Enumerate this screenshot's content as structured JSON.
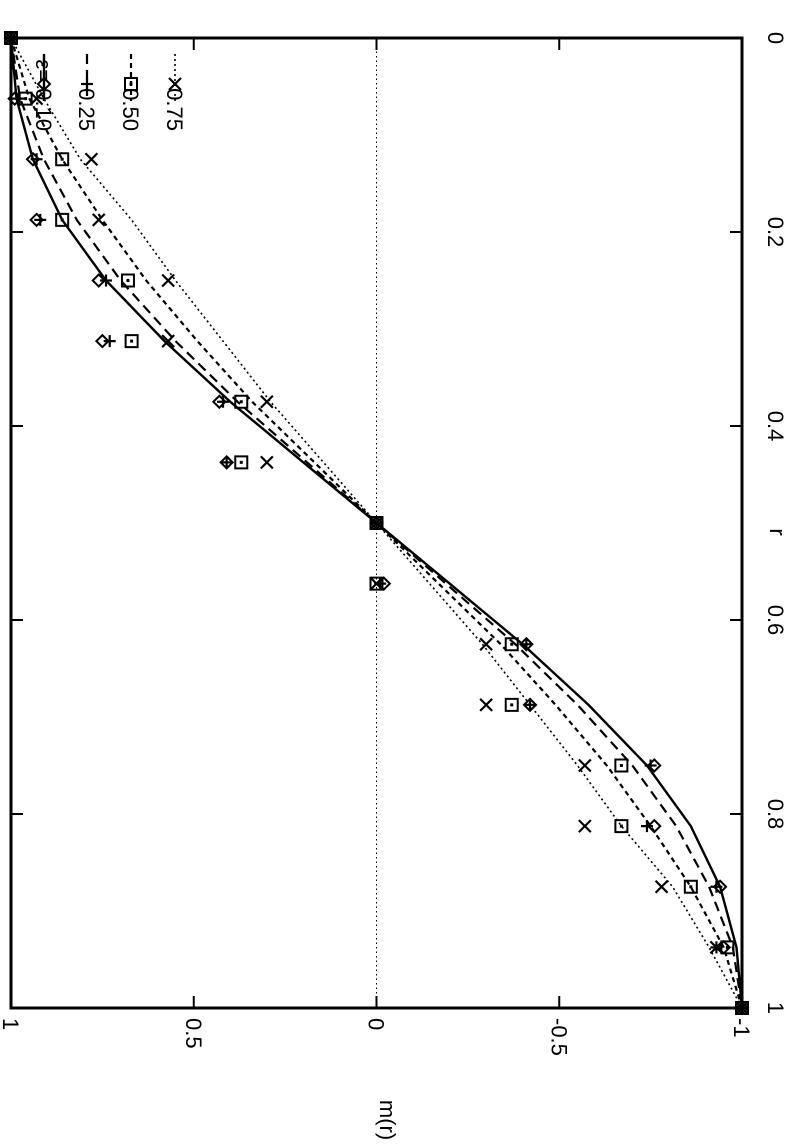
{
  "chart_data": {
    "type": "line",
    "orientation": "rotated-90-clockwise",
    "xlabel": "r",
    "ylabel": "m(r)",
    "xlim": [
      0,
      1
    ],
    "ylim": [
      -1,
      1
    ],
    "x_ticks": [
      {
        "value": 0,
        "label": "0"
      },
      {
        "value": 0.2,
        "label": "0.2"
      },
      {
        "value": 0.4,
        "label": "0.4"
      },
      {
        "value": 0.6,
        "label": "0.6"
      },
      {
        "value": 0.8,
        "label": "0.8"
      },
      {
        "value": 1,
        "label": "1"
      }
    ],
    "y_ticks": [
      {
        "value": 1,
        "label": "1"
      },
      {
        "value": 0.5,
        "label": "0.5"
      },
      {
        "value": 0,
        "label": "0"
      },
      {
        "value": -0.5,
        "label": "-0.5"
      },
      {
        "value": -1,
        "label": "-1"
      }
    ],
    "zero_line": true,
    "grid": false,
    "legend_position": "top-right",
    "legend_prefix": "ε=",
    "series": [
      {
        "name": "0.10",
        "marker": "diamond",
        "line_style": "solid",
        "points_x": [
          0.0,
          0.0625,
          0.125,
          0.1875,
          0.25,
          0.3125,
          0.375,
          0.4375,
          0.5,
          0.5625,
          0.625,
          0.6875,
          0.75,
          0.8125,
          0.875,
          0.9375,
          1.0
        ],
        "points_y": [
          1.0,
          0.99,
          0.94,
          0.93,
          0.76,
          0.75,
          0.43,
          0.41,
          0.0,
          -0.02,
          -0.41,
          -0.42,
          -0.76,
          -0.76,
          -0.94,
          -0.95,
          -1.0
        ],
        "curve_x": [
          0.0,
          0.0625,
          0.125,
          0.1875,
          0.25,
          0.3125,
          0.375,
          0.4375,
          0.5,
          0.5625,
          0.625,
          0.6875,
          0.75,
          0.8125,
          0.875,
          0.9375,
          1.0
        ],
        "curve_y": [
          1.0,
          0.985,
          0.94,
          0.86,
          0.74,
          0.58,
          0.4,
          0.2,
          0.0,
          -0.2,
          -0.4,
          -0.58,
          -0.74,
          -0.86,
          -0.94,
          -0.985,
          -1.0
        ]
      },
      {
        "name": "0.25",
        "marker": "plus",
        "line_style": "dashed",
        "points_x": [
          0.0,
          0.0625,
          0.125,
          0.1875,
          0.25,
          0.3125,
          0.375,
          0.4375,
          0.5,
          0.5625,
          0.625,
          0.6875,
          0.75,
          0.8125,
          0.875,
          0.9375,
          1.0
        ],
        "points_y": [
          1.0,
          0.98,
          0.93,
          0.92,
          0.74,
          0.73,
          0.42,
          0.41,
          0.0,
          -0.01,
          -0.41,
          -0.42,
          -0.75,
          -0.74,
          -0.93,
          -0.93,
          -1.0
        ],
        "curve_x": [
          0.0,
          0.0625,
          0.125,
          0.1875,
          0.25,
          0.3125,
          0.375,
          0.4375,
          0.5,
          0.5625,
          0.625,
          0.6875,
          0.75,
          0.8125,
          0.875,
          0.9375,
          1.0
        ],
        "curve_y": [
          1.0,
          0.975,
          0.91,
          0.82,
          0.7,
          0.55,
          0.38,
          0.19,
          0.0,
          -0.19,
          -0.38,
          -0.55,
          -0.7,
          -0.82,
          -0.91,
          -0.975,
          -1.0
        ]
      },
      {
        "name": "0.50",
        "marker": "square",
        "line_style": "dash-dot",
        "points_x": [
          0.0,
          0.0625,
          0.125,
          0.1875,
          0.25,
          0.3125,
          0.375,
          0.4375,
          0.5,
          0.5625,
          0.625,
          0.6875,
          0.75,
          0.8125,
          0.875,
          0.9375,
          1.0
        ],
        "points_y": [
          1.0,
          0.96,
          0.86,
          0.86,
          0.68,
          0.67,
          0.37,
          0.37,
          0.0,
          0.0,
          -0.37,
          -0.37,
          -0.67,
          -0.67,
          -0.86,
          -0.96,
          -1.0
        ],
        "curve_x": [
          0.0,
          0.0625,
          0.125,
          0.1875,
          0.25,
          0.3125,
          0.375,
          0.4375,
          0.5,
          0.5625,
          0.625,
          0.6875,
          0.75,
          0.8125,
          0.875,
          0.9375,
          1.0
        ],
        "curve_y": [
          1.0,
          0.95,
          0.86,
          0.75,
          0.63,
          0.49,
          0.34,
          0.17,
          0.0,
          -0.17,
          -0.34,
          -0.49,
          -0.63,
          -0.75,
          -0.86,
          -0.95,
          -1.0
        ]
      },
      {
        "name": "0.75",
        "marker": "cross",
        "line_style": "dotted",
        "points_x": [
          0.0,
          0.0625,
          0.125,
          0.1875,
          0.25,
          0.3125,
          0.375,
          0.4375,
          0.5,
          0.5625,
          0.625,
          0.6875,
          0.75,
          0.8125,
          0.875,
          0.9375,
          1.0
        ],
        "points_y": [
          1.0,
          0.93,
          0.78,
          0.76,
          0.57,
          0.57,
          0.3,
          0.3,
          0.0,
          0.0,
          -0.3,
          -0.3,
          -0.57,
          -0.57,
          -0.78,
          -0.93,
          -1.0
        ],
        "curve_x": [
          0.0,
          0.0625,
          0.125,
          0.1875,
          0.25,
          0.3125,
          0.375,
          0.4375,
          0.5,
          0.5625,
          0.625,
          0.6875,
          0.75,
          0.8125,
          0.875,
          0.9375,
          1.0
        ],
        "curve_y": [
          1.0,
          0.91,
          0.81,
          0.67,
          0.55,
          0.42,
          0.29,
          0.145,
          0.0,
          -0.145,
          -0.29,
          -0.42,
          -0.55,
          -0.67,
          -0.81,
          -0.91,
          -1.0
        ]
      }
    ]
  }
}
